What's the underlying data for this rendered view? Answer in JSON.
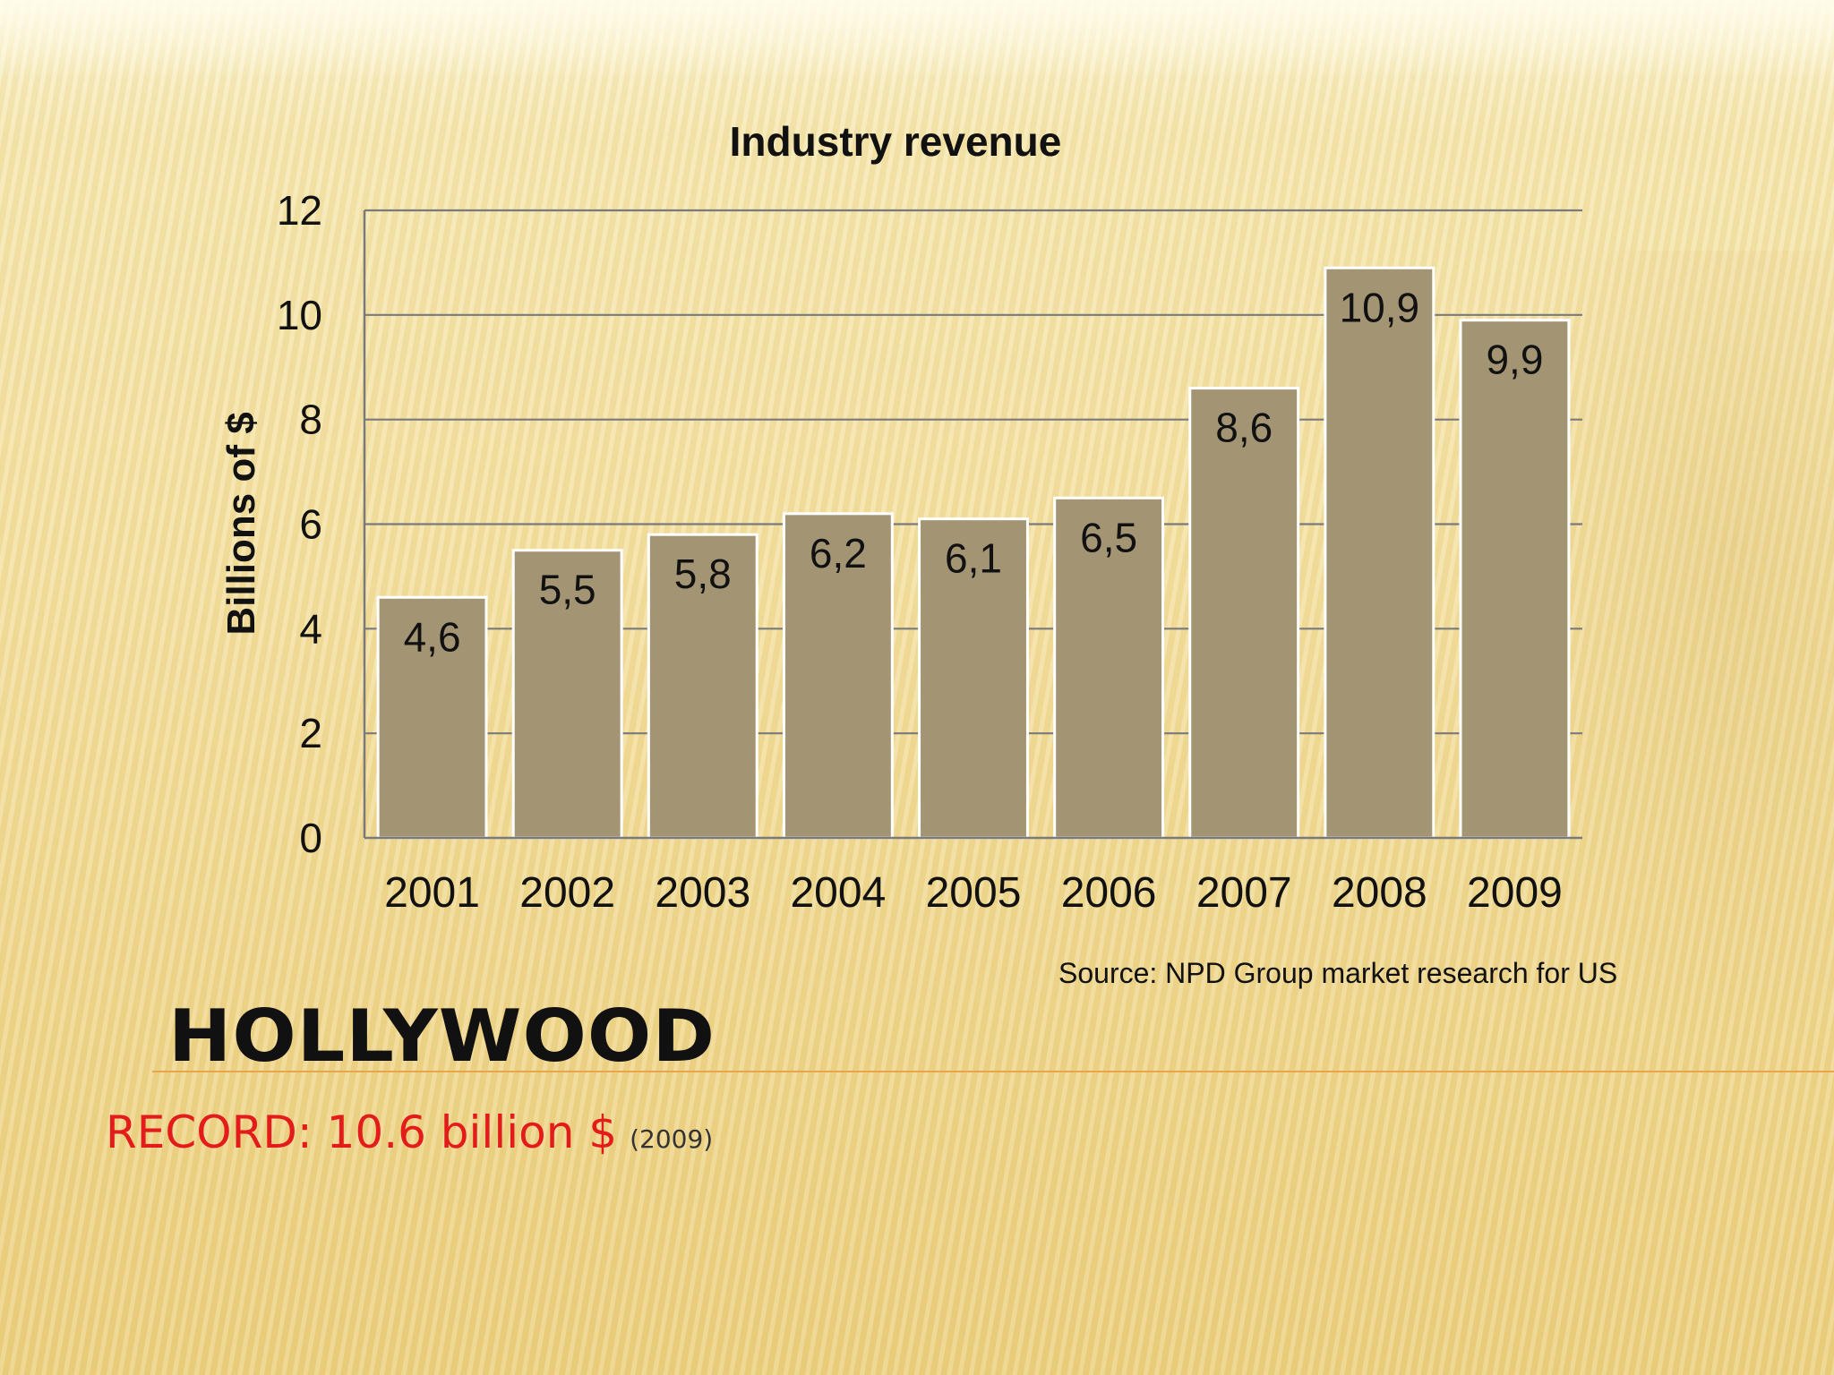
{
  "slide": {
    "title": "HOLLYWOOD",
    "record_text": "RECORD: 10.6 billion $",
    "record_year": "(2009)"
  },
  "colors": {
    "bar_fill": "#a39574",
    "bar_border": "#ffffff",
    "gridline": "#7a7a7a",
    "record_text": "#e31b1b",
    "divider": "#e7a64a"
  },
  "chart_data": {
    "type": "bar",
    "title": "Industry revenue",
    "ylabel": "Billions of $",
    "xlabel": "",
    "categories": [
      "2001",
      "2002",
      "2003",
      "2004",
      "2005",
      "2006",
      "2007",
      "2008",
      "2009"
    ],
    "values": [
      4.6,
      5.5,
      5.8,
      6.2,
      6.1,
      6.5,
      8.6,
      10.9,
      9.9
    ],
    "data_labels": [
      "4,6",
      "5,5",
      "5,8",
      "6,2",
      "6,1",
      "6,5",
      "8,6",
      "10,9",
      "9,9"
    ],
    "ylim": [
      0,
      12
    ],
    "yticks": [
      0,
      2,
      4,
      6,
      8,
      10,
      12
    ],
    "grid": true,
    "legend": "none",
    "source": "Source:  NPD Group  market  research  for US"
  }
}
